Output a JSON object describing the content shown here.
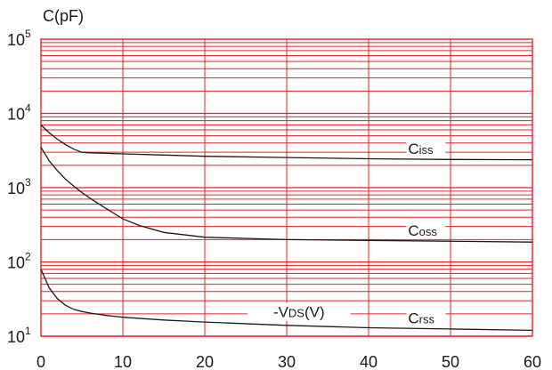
{
  "chart_data": {
    "type": "line",
    "title": "",
    "xlabel": "-VDS(V)",
    "xlabel_main": "-V",
    "xlabel_sub": "DS",
    "xlabel_unit": "(V)",
    "ylabel": "C(pF)",
    "xlim": [
      0,
      60
    ],
    "ylim": [
      10,
      100000
    ],
    "yscale": "log",
    "grid": true,
    "grid_color": "#e0242a",
    "line_color": "#1a1a1a",
    "x_ticks": [
      "0",
      "10",
      "20",
      "30",
      "40",
      "50",
      "60"
    ],
    "y_ticks": [
      {
        "base": "10",
        "exp": "1"
      },
      {
        "base": "10",
        "exp": "2"
      },
      {
        "base": "10",
        "exp": "3"
      },
      {
        "base": "10",
        "exp": "4"
      },
      {
        "base": "10",
        "exp": "5"
      }
    ],
    "series": [
      {
        "name": "Ciss",
        "label_main": "C",
        "label_sub": "iss",
        "label_x": 47,
        "x": [
          0,
          1,
          2,
          3,
          4,
          5,
          6,
          8,
          10,
          15,
          20,
          30,
          40,
          50,
          60
        ],
        "y": [
          7000,
          5500,
          4500,
          3800,
          3300,
          3000,
          2950,
          2900,
          2850,
          2750,
          2650,
          2550,
          2450,
          2400,
          2380
        ]
      },
      {
        "name": "Coss",
        "label_main": "C",
        "label_sub": "oss",
        "label_x": 47,
        "x": [
          0,
          1,
          2,
          3,
          4,
          5,
          6,
          8,
          10,
          12,
          15,
          20,
          30,
          40,
          50,
          60
        ],
        "y": [
          3500,
          2300,
          1700,
          1300,
          1050,
          860,
          720,
          520,
          380,
          310,
          250,
          215,
          200,
          195,
          190,
          185
        ]
      },
      {
        "name": "Crss",
        "label_main": "C",
        "label_sub": "rss",
        "label_x": 47,
        "x": [
          0,
          1,
          2,
          3,
          4,
          5,
          6,
          8,
          10,
          15,
          20,
          30,
          40,
          50,
          60
        ],
        "y": [
          80,
          45,
          32,
          26,
          23,
          21.5,
          20.5,
          19,
          18,
          16.5,
          15.5,
          14,
          13,
          12.5,
          12
        ]
      }
    ]
  }
}
